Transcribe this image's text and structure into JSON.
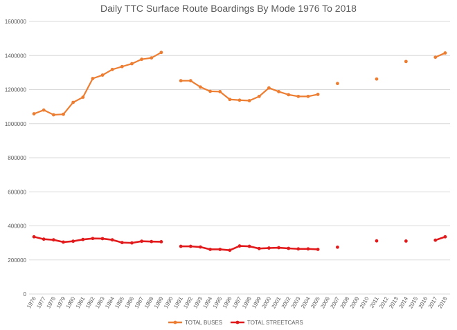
{
  "chart_data": {
    "type": "line",
    "title": "Daily TTC Surface Route Boardings By Mode 1976 To 2018",
    "xlabel": "",
    "ylabel": "",
    "ylim": [
      0,
      1600000
    ],
    "yticks": [
      "0",
      "200000",
      "400000",
      "600000",
      "800000",
      "1000000",
      "1200000",
      "1400000",
      "1600000"
    ],
    "categories": [
      "1976",
      "1977",
      "1978",
      "1979",
      "1980",
      "1981",
      "1982",
      "1983",
      "1984",
      "1985",
      "1986",
      "1987",
      "1988",
      "1989",
      "1990",
      "1991",
      "1992",
      "1993",
      "1994",
      "1995",
      "1996",
      "1997",
      "1998",
      "1999",
      "2000",
      "2001",
      "2002",
      "2003",
      "2004",
      "2005",
      "2006",
      "2007",
      "2008",
      "2009",
      "2010",
      "2011",
      "2012",
      "2013",
      "2014",
      "2015",
      "2016",
      "2017",
      "2018"
    ],
    "legend": "bottom",
    "grid": true,
    "series": [
      {
        "name": "TOTAL BUSES",
        "color": "#ed7d31",
        "values": [
          1058000,
          1080000,
          1052000,
          1055000,
          1125000,
          1155000,
          1265000,
          1285000,
          1318000,
          1335000,
          1352000,
          1378000,
          1386000,
          1418000,
          null,
          1252000,
          1252000,
          1215000,
          1190000,
          1188000,
          1142000,
          1138000,
          1135000,
          1160000,
          1210000,
          1188000,
          1170000,
          1160000,
          1160000,
          1172000,
          null,
          1236000,
          null,
          null,
          null,
          1262000,
          null,
          null,
          1365000,
          null,
          null,
          1390000,
          1415000
        ]
      },
      {
        "name": "TOTAL STREETCARS",
        "color": "#e31a1c",
        "values": [
          336000,
          322000,
          318000,
          305000,
          310000,
          320000,
          326000,
          325000,
          318000,
          302000,
          300000,
          310000,
          308000,
          307000,
          null,
          280000,
          280000,
          276000,
          262000,
          262000,
          257000,
          282000,
          280000,
          267000,
          270000,
          272000,
          268000,
          265000,
          265000,
          262000,
          null,
          275000,
          null,
          null,
          null,
          312000,
          null,
          null,
          311000,
          null,
          null,
          316000,
          336000
        ]
      }
    ]
  }
}
